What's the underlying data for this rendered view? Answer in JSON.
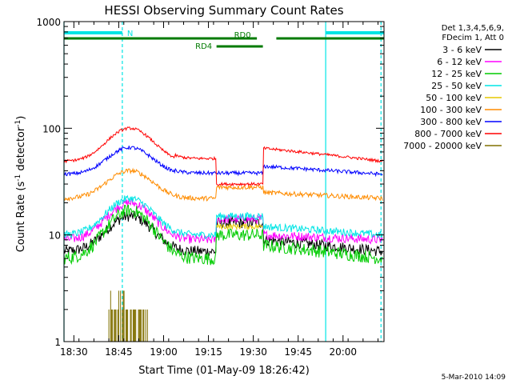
{
  "chart_data": {
    "type": "line",
    "title": "HESSI Observing Summary Count Rates",
    "xlabel": "Start Time (01-May-09 18:26:42)",
    "ylabel_main": "Count Rate (s",
    "ylabel_sup1": "-1",
    "ylabel_mid": " detector",
    "ylabel_sup2": "-1",
    "ylabel_end": ")",
    "y_scale": "log",
    "ylim": [
      1,
      1000
    ],
    "xlim_minutes": [
      0,
      107
    ],
    "x_ticks": [
      {
        "label": "18:30",
        "min": 3.3
      },
      {
        "label": "18:45",
        "min": 18.3
      },
      {
        "label": "19:00",
        "min": 33.3
      },
      {
        "label": "19:15",
        "min": 48.3
      },
      {
        "label": "19:30",
        "min": 63.3
      },
      {
        "label": "19:45",
        "min": 78.3
      },
      {
        "label": "20:00",
        "min": 93.3
      }
    ],
    "y_ticks": [
      {
        "label": "1",
        "value": 1
      },
      {
        "label": "10",
        "value": 10
      },
      {
        "label": "100",
        "value": 100
      },
      {
        "label": "1000",
        "value": 1000
      }
    ],
    "legend": {
      "header": [
        "Det 1,3,4,5,6,9,",
        "FDecim 1, Att 0"
      ],
      "entries": [
        {
          "label": "3 - 6 keV",
          "color": "#000000"
        },
        {
          "label": "6 - 12 keV",
          "color": "#ff00ff"
        },
        {
          "label": "12 - 25 keV",
          "color": "#00cc00"
        },
        {
          "label": "25 - 50 keV",
          "color": "#00e5e5"
        },
        {
          "label": "50 - 100 keV",
          "color": "#e5c800"
        },
        {
          "label": "100 - 300 keV",
          "color": "#ff8c00"
        },
        {
          "label": "300 - 800 keV",
          "color": "#0000ff"
        },
        {
          "label": "800 - 7000 keV",
          "color": "#ff0000"
        },
        {
          "label": "7000 - 20000 keV",
          "color": "#807000"
        }
      ]
    },
    "series": [
      {
        "name": "3 - 6 keV",
        "color": "#000000",
        "base": 7,
        "peak": 15,
        "dip": 7,
        "after": 9,
        "attenuator": 13,
        "noise": 0.12
      },
      {
        "name": "6 - 12 keV",
        "color": "#ff00ff",
        "base": 9,
        "peak": 20,
        "dip": 9,
        "after": 10,
        "attenuator": 14,
        "noise": 0.1
      },
      {
        "name": "12 - 25 keV",
        "color": "#00cc00",
        "base": 6,
        "peak": 17,
        "dip": 6,
        "after": 8,
        "attenuator": 10,
        "noise": 0.14
      },
      {
        "name": "25 - 50 keV",
        "color": "#00e5e5",
        "base": 10,
        "peak": 22,
        "dip": 10,
        "after": 12,
        "attenuator": 15,
        "noise": 0.08
      },
      {
        "name": "50 - 100 keV",
        "color": "#e5c800",
        "base": null,
        "peak": null,
        "dip": null,
        "after": null,
        "attenuator": 12,
        "noise": 0.06
      },
      {
        "name": "100 - 300 keV",
        "color": "#ff8c00",
        "base": 22,
        "peak": 40,
        "dip": 22,
        "after": 25,
        "attenuator": 28,
        "noise": 0.05
      },
      {
        "name": "300 - 800 keV",
        "color": "#0000ff",
        "base": 37,
        "peak": 66,
        "dip": 38,
        "after": 44,
        "attenuator": 38,
        "noise": 0.04
      },
      {
        "name": "800 - 7000 keV",
        "color": "#ff0000",
        "base": 49,
        "peak": 100,
        "dip": 52,
        "after": 65,
        "attenuator": 30,
        "noise": 0.03
      }
    ],
    "spike_series": {
      "name": "7000 - 20000 keV",
      "color": "#807000",
      "start_min": 15,
      "end_min": 28,
      "level_low": 1,
      "level_high": 2,
      "peak": 3
    },
    "flags": {
      "N_label": "N",
      "RD0_label": "RD0",
      "RD4_label": "RD4",
      "cyan_bar": [
        {
          "from": 0,
          "to": 19.5
        },
        {
          "from": 87.5,
          "to": 107
        }
      ],
      "rd0_bar": [
        {
          "from": 0,
          "to": 64.5
        },
        {
          "from": 71,
          "to": 107
        }
      ],
      "rd4_bar": [
        {
          "from": 51,
          "to": 66.5
        }
      ],
      "solid_vlines_min": [
        0,
        87.5
      ],
      "dashed_vlines_min": [
        19.5,
        106
      ],
      "attenuator_window_min": [
        51,
        66.5
      ]
    }
  },
  "footer": {
    "date_stamp": "5-Mar-2010 14:09"
  }
}
